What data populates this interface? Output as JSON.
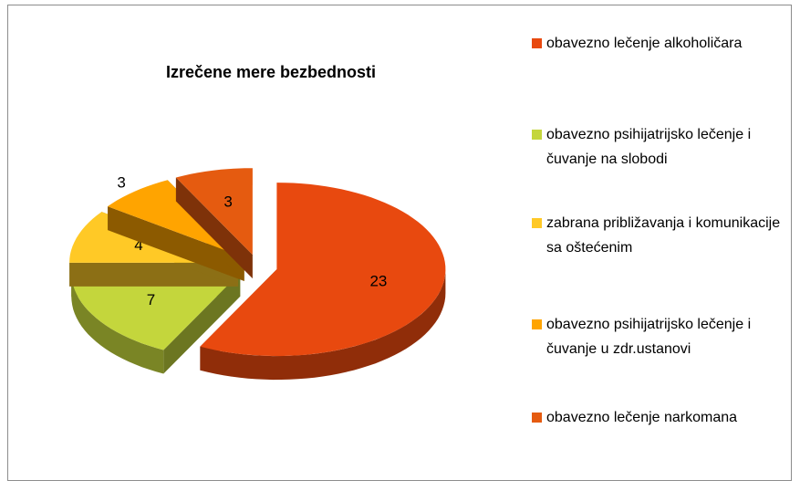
{
  "chart_data": {
    "type": "pie",
    "title": "Izrečene mere bezbednosti",
    "categories": [
      "obavezno lečenje alkoholičara",
      "obavezno psihijatrijsko lečenje i čuvanje na slobodi",
      "zabrana približavanja i komunikacije sa oštećenim",
      "obavezno psihijatrijsko lečenje i čuvanje u zdr.ustanovi",
      "obavezno lečenje narkomana"
    ],
    "values": [
      23,
      7,
      4,
      3,
      3
    ],
    "colors": [
      "#e8490f",
      "#c4d63c",
      "#ffc926",
      "#ffa400",
      "#e55b10"
    ],
    "legend": "right"
  }
}
